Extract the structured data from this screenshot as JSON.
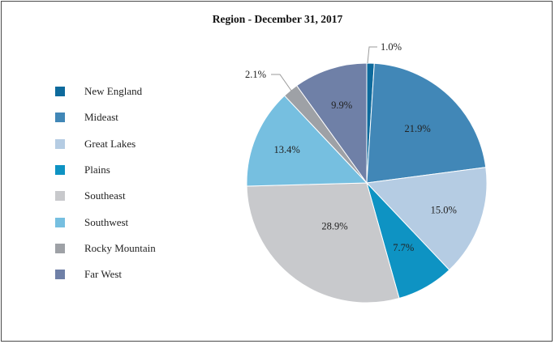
{
  "chart_data": {
    "type": "pie",
    "title": "Region - December 31, 2017",
    "legend_position": "left",
    "slices": [
      {
        "label": "New England",
        "value": 1.0,
        "value_label": "1.0%",
        "color": "#0d6a9c"
      },
      {
        "label": "Mideast",
        "value": 21.9,
        "value_label": "21.9%",
        "color": "#4187b7"
      },
      {
        "label": "Great Lakes",
        "value": 15.0,
        "value_label": "15.0%",
        "color": "#b5cce3"
      },
      {
        "label": "Plains",
        "value": 7.7,
        "value_label": "7.7%",
        "color": "#0e93c3"
      },
      {
        "label": "Southeast",
        "value": 28.9,
        "value_label": "28.9%",
        "color": "#c8c9cc"
      },
      {
        "label": "Southwest",
        "value": 13.4,
        "value_label": "13.4%",
        "color": "#76bfe0"
      },
      {
        "label": "Rocky Mountain",
        "value": 2.1,
        "value_label": "2.1%",
        "color": "#9ea1a6"
      },
      {
        "label": "Far West",
        "value": 9.9,
        "value_label": "9.9%",
        "color": "#6f80a7"
      }
    ]
  }
}
